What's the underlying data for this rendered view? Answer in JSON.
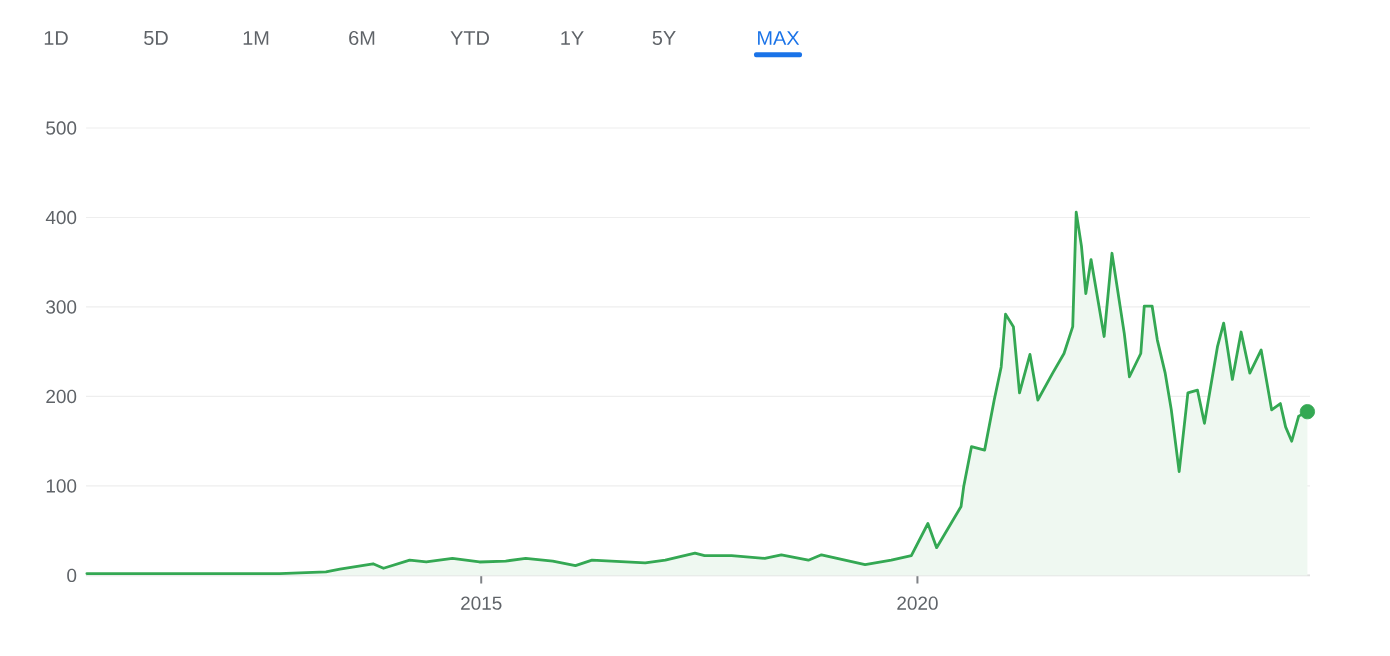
{
  "chart_data": {
    "type": "area",
    "xlim": [
      2010.47,
      2024.5
    ],
    "xticks": [
      2015,
      2020
    ],
    "ylim": [
      0,
      500
    ],
    "yticks": [
      0,
      100,
      200,
      300,
      400,
      500
    ],
    "grid": "y",
    "annotations": [
      "1D",
      "5D",
      "1M",
      "6M",
      "YTD",
      "1Y",
      "5Y",
      "MAX"
    ],
    "series": [
      {
        "color": "#34a853",
        "x": [
          2010.48,
          2010.86,
          2011.78,
          2012.69,
          2013.22,
          2013.38,
          2013.76,
          2013.88,
          2014.18,
          2014.37,
          2014.67,
          2014.98,
          2015.28,
          2015.51,
          2015.82,
          2016.08,
          2016.27,
          2016.88,
          2017.11,
          2017.45,
          2017.56,
          2017.87,
          2018.25,
          2018.44,
          2018.75,
          2018.9,
          2019.4,
          2019.7,
          2019.93,
          2020.12,
          2020.22,
          2020.5,
          2020.53,
          2020.62,
          2020.77,
          2020.88,
          2020.96,
          2021.01,
          2021.1,
          2021.17,
          2021.29,
          2021.38,
          2021.55,
          2021.68,
          2021.78,
          2021.82,
          2021.88,
          2021.93,
          2021.99,
          2022.14,
          2022.23,
          2022.37,
          2022.43,
          2022.56,
          2022.6,
          2022.69,
          2022.75,
          2022.84,
          2022.91,
          2023.0,
          2023.1,
          2023.21,
          2023.29,
          2023.44,
          2023.51,
          2023.61,
          2023.71,
          2023.81,
          2023.94,
          2024.06,
          2024.16,
          2024.22,
          2024.29,
          2024.37,
          2024.47
        ],
        "values": [
          2,
          2,
          2,
          2,
          4,
          7,
          13,
          8,
          17,
          15,
          19,
          15,
          16,
          19,
          16,
          11,
          17,
          14,
          17,
          25,
          22,
          22,
          19,
          23,
          17,
          23,
          12,
          17,
          22,
          58,
          31,
          77,
          99,
          144,
          140,
          196,
          233,
          292,
          278,
          204,
          247,
          196,
          226,
          248,
          278,
          406,
          368,
          315,
          353,
          267,
          360,
          271,
          222,
          248,
          301,
          301,
          263,
          226,
          185,
          116,
          204,
          207,
          170,
          256,
          282,
          219,
          272,
          226,
          252,
          185,
          192,
          166,
          150,
          178,
          183
        ]
      },
      {
        "type": "scatter",
        "color": "#34a853",
        "marker": "circle",
        "x": [
          2024.47
        ],
        "values": [
          183
        ]
      }
    ]
  }
}
